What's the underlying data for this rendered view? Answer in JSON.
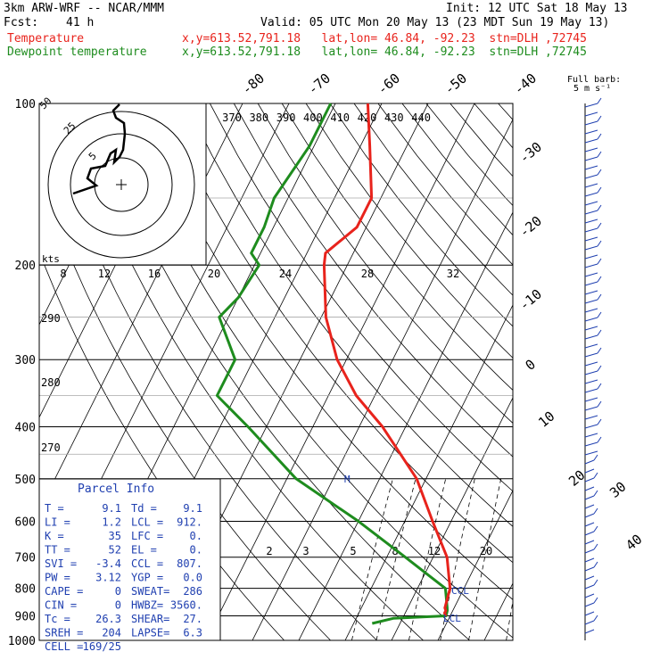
{
  "header": {
    "model": "3km ARW-WRF -- NCAR/MMM",
    "init": "Init: 12 UTC Sat 18 May 13",
    "fcst_label": "Fcst:",
    "fcst_value": "41 h",
    "valid": "Valid: 05 UTC Mon 20 May 13 (23 MDT Sun 19 May 13)",
    "temp_label": "Temperature",
    "dew_label": "Dewpoint temperature",
    "loc_temp": "x,y=613.52,791.18   lat,lon= 46.84, -92.23  stn=DLH ,72745",
    "loc_dew": "x,y=613.52,791.18   lat,lon= 46.84, -92.23  stn=DLH ,72745",
    "wind_key_1": "Full barb:",
    "wind_key_2": "5 m s⁻¹"
  },
  "colors": {
    "temperature": "#e8231c",
    "dewpoint": "#1e8c1e",
    "axes": "#000000",
    "grid": "#a8a8a8",
    "panel": "#1f3fb0"
  },
  "hodograph": {
    "ring_labels": [
      "5",
      "25",
      "50"
    ],
    "axis_label": "kts"
  },
  "parcel": {
    "title": "Parcel Info",
    "rows": [
      [
        "T  =",
        "9.1",
        "Td =",
        "9.1"
      ],
      [
        "LI =",
        "1.2",
        "LCL =",
        "912."
      ],
      [
        "K  =",
        "35",
        "LFC =",
        "0."
      ],
      [
        "TT =",
        "52",
        "EL  =",
        "0."
      ],
      [
        "SVI =",
        "-3.4",
        "CCL =",
        "807."
      ],
      [
        "PW =",
        "3.12",
        "YGP =",
        "0.0"
      ],
      [
        "CAPE =",
        "0",
        "SWEAT=",
        "286"
      ],
      [
        "CIN =",
        "0",
        "HWBZ=",
        "3560."
      ],
      [
        "Tc =",
        "26.3",
        "SHEAR=",
        "27."
      ],
      [
        "SREH =",
        "204",
        "LAPSE=",
        "6.3"
      ],
      [
        "CELL =",
        "169/25",
        "",
        ""
      ]
    ]
  },
  "annotations": {
    "ccl": "CCL",
    "lcl": "LCL",
    "m": "M"
  },
  "chart_data": {
    "type": "line",
    "chart": "Skew-T log-P sounding",
    "y_axis": {
      "quantity": "pressure (hPa)",
      "scale": "log",
      "range": [
        1000,
        100
      ],
      "ticks": [
        100,
        200,
        300,
        400,
        500,
        600,
        700,
        800,
        900,
        1000
      ]
    },
    "isotherm_labels": [
      "-80",
      "-70",
      "-60",
      "-50",
      "-40",
      "-30",
      "-20",
      "-10",
      "0",
      "10",
      "20",
      "30",
      "40"
    ],
    "theta_labels": [
      "370",
      "380",
      "390",
      "400",
      "410",
      "420",
      "430",
      "440"
    ],
    "mixing_ratio_labels_upper": [
      "8",
      "12",
      "16",
      "20",
      "24",
      "28",
      "32"
    ],
    "mixing_ratio_labels_lower": [
      "2",
      "3",
      "5",
      "8",
      "12",
      "20"
    ],
    "theta_e_labels": [
      "290",
      "280",
      "270"
    ],
    "series": [
      {
        "name": "Temperature",
        "p": [
          100,
          120,
          150,
          170,
          190,
          200,
          250,
          300,
          350,
          400,
          500,
          600,
          700,
          800,
          870,
          880,
          890,
          900
        ],
        "t": [
          -63,
          -58,
          -52,
          -52,
          -56,
          -55,
          -49,
          -42,
          -34,
          -25,
          -12,
          -4,
          3,
          7,
          8,
          8.5,
          8.5,
          9.1
        ]
      },
      {
        "name": "Dewpoint temperature",
        "p": [
          100,
          120,
          150,
          170,
          190,
          200,
          230,
          250,
          300,
          350,
          400,
          500,
          600,
          700,
          800,
          870,
          880,
          900,
          910,
          930
        ],
        "td": [
          -71,
          -71,
          -73,
          -72,
          -72,
          -69,
          -70,
          -72,
          -64,
          -64,
          -54,
          -38,
          -20,
          -6,
          6,
          8.5,
          8.8,
          9.1,
          -2,
          -6
        ]
      }
    ],
    "wind_barbs_present": true
  }
}
